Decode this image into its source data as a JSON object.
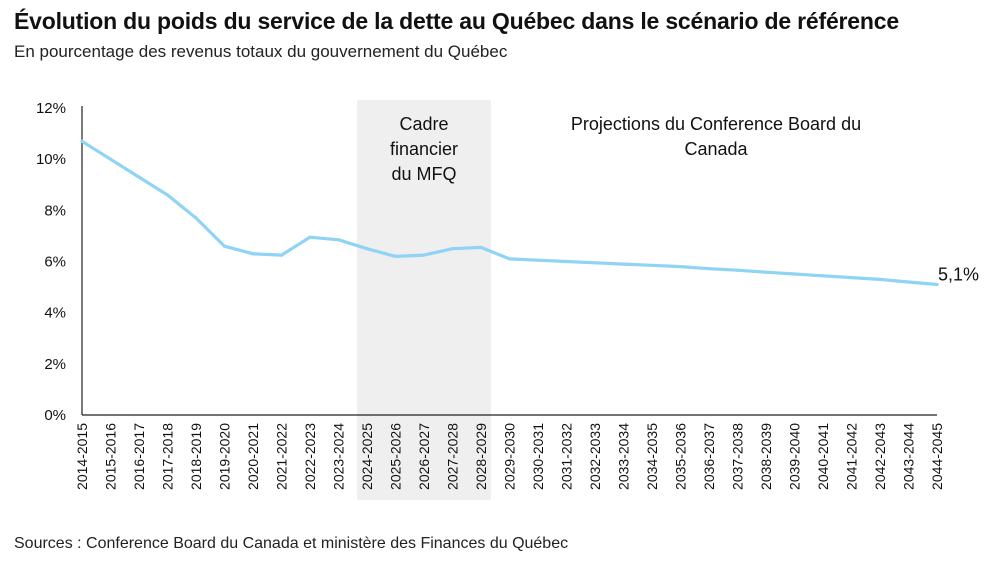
{
  "header": {
    "title": "Évolution du poids du service de la dette au Québec dans le scénario de référence",
    "subtitle": "En pourcentage des revenus totaux du gouvernement du Québec"
  },
  "footer": {
    "source": "Sources : Conference Board du Canada et ministère des Finances du Québec"
  },
  "colors": {
    "line": "#8fd3f5",
    "band": "#efefef",
    "axis": "#222222"
  },
  "chart_data": {
    "type": "line",
    "title": "Évolution du poids du service de la dette au Québec dans le scénario de référence",
    "subtitle": "En pourcentage des revenus totaux du gouvernement du Québec",
    "ylim": [
      0,
      12
    ],
    "yticks": [
      "0%",
      "2%",
      "4%",
      "6%",
      "8%",
      "10%",
      "12%"
    ],
    "grid": false,
    "categories": [
      "2014-2015",
      "2015-2016",
      "2016-2017",
      "2017-2018",
      "2018-2019",
      "2019-2020",
      "2020-2021",
      "2021-2022",
      "2022-2023",
      "2023-2024",
      "2024-2025",
      "2025-2026",
      "2026-2027",
      "2027-2028",
      "2028-2029",
      "2029-2030",
      "2030-2031",
      "2031-2032",
      "2032-2033",
      "2033-2034",
      "2034-2035",
      "2035-2036",
      "2036-2037",
      "2037-2038",
      "2038-2039",
      "2039-2040",
      "2040-2041",
      "2041-2042",
      "2042-2043",
      "2043-2044",
      "2044-2045"
    ],
    "series": [
      {
        "values": [
          10.7,
          10.0,
          9.3,
          8.6,
          7.7,
          6.6,
          6.3,
          6.25,
          6.95,
          6.85,
          6.5,
          6.2,
          6.25,
          6.5,
          6.55,
          6.1,
          6.05,
          6.0,
          5.95,
          5.9,
          5.85,
          5.8,
          5.72,
          5.66,
          5.58,
          5.51,
          5.44,
          5.37,
          5.3,
          5.2,
          5.1
        ]
      }
    ],
    "shaded_region": {
      "from": "2024-2025",
      "to": "2028-2029",
      "label": "Cadre financier du MFQ"
    },
    "annotations": {
      "cadre": [
        "Cadre",
        "financier",
        "du MFQ"
      ],
      "projections": [
        "Projections du Conference Board du",
        "Canada"
      ],
      "end_label": "5,1%"
    }
  }
}
